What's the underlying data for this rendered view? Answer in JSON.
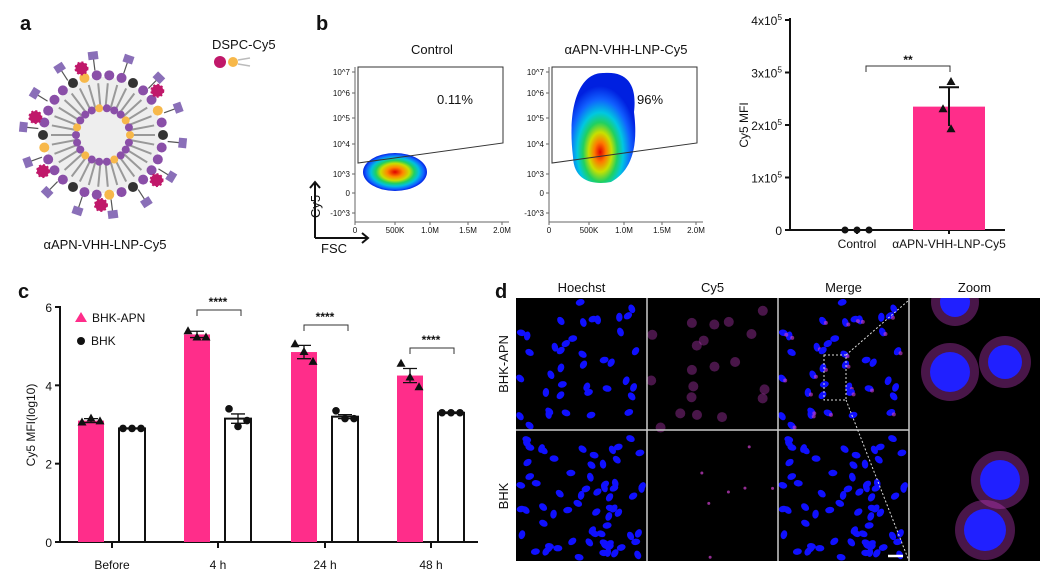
{
  "panels": {
    "a": {
      "letter": "a",
      "caption": "αAPN-VHH-LNP-Cy5",
      "legend_label": "DSPC-Cy5"
    },
    "b": {
      "letter": "b",
      "flow_plots": [
        {
          "title": "Control",
          "gate_percent": "0.11%"
        },
        {
          "title": "αAPN-VHH-LNP-Cy5",
          "gate_percent": "96%"
        }
      ],
      "flow_y_ticks": [
        "10^7",
        "10^6",
        "10^5",
        "10^4",
        "10^3",
        "0",
        "-10^3"
      ],
      "flow_x_ticks": [
        "0",
        "500K",
        "1.0M",
        "1.5M",
        "2.0M"
      ],
      "flow_y_axis": "Cy5",
      "flow_x_axis": "FSC"
    },
    "c": {
      "letter": "c"
    },
    "d": {
      "letter": "d",
      "columns": [
        "Hoechst",
        "Cy5",
        "Merge",
        "Zoom"
      ],
      "rows": [
        "BHK-APN",
        "BHK"
      ]
    }
  },
  "colors": {
    "pink": "#ff2d8a",
    "blue_nuclei": "#1010ff",
    "magenta": "#d040d0"
  },
  "chart_data": [
    {
      "type": "bar",
      "panel": "b",
      "categories": [
        "Control",
        "αAPN-VHH-LNP-Cy5"
      ],
      "values": [
        0,
        235000
      ],
      "error": [
        0,
        37000
      ],
      "points": [
        [
          0,
          0,
          0
        ],
        [
          282000,
          230000,
          192000
        ]
      ],
      "ylabel": "Cy5 MFI",
      "yticks": [
        "0",
        "1x10^5",
        "2x10^5",
        "3x10^5",
        "4x10^5"
      ],
      "ylim": [
        0,
        400000
      ],
      "significance": "**",
      "bar_colors": [
        "#ffffff",
        "#ff2d8a"
      ]
    },
    {
      "type": "bar",
      "panel": "c",
      "categories": [
        "Before",
        "4 h",
        "24 h",
        "48 h"
      ],
      "series": [
        {
          "name": "BHK-APN",
          "values": [
            3.1,
            5.3,
            4.85,
            4.25
          ],
          "error": [
            0.05,
            0.08,
            0.17,
            0.18
          ],
          "points": [
            [
              3.05,
              3.15,
              3.08
            ],
            [
              5.38,
              5.22,
              5.22
            ],
            [
              5.05,
              4.85,
              4.6
            ],
            [
              4.55,
              4.2,
              3.95
            ]
          ],
          "color": "#ff2d8a",
          "marker": "triangle"
        },
        {
          "name": "BHK",
          "values": [
            2.9,
            3.15,
            3.2,
            3.3
          ],
          "error": [
            0.01,
            0.12,
            0.05,
            0.02
          ],
          "points": [
            [
              2.9,
              2.9,
              2.9
            ],
            [
              3.4,
              2.95,
              3.1
            ],
            [
              3.35,
              3.15,
              3.15
            ],
            [
              3.3,
              3.3,
              3.3
            ]
          ],
          "color": "#ffffff",
          "marker": "circle"
        }
      ],
      "ylabel": "Cy5 MFI(log10)",
      "yticks": [
        "0",
        "2",
        "4",
        "6"
      ],
      "ylim": [
        0,
        6
      ],
      "significance": [
        "",
        "****",
        "****",
        "****"
      ],
      "legend_position": "top-left"
    }
  ]
}
